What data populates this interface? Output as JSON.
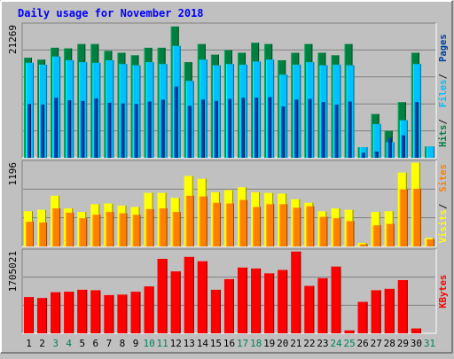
{
  "chart_data": [
    {
      "type": "bar",
      "title": "Daily usage for November 2018",
      "ymax_label": "21269",
      "ylim": [
        0,
        21269
      ],
      "grid": true,
      "categories": [
        "1",
        "2",
        "3",
        "4",
        "5",
        "6",
        "7",
        "8",
        "9",
        "10",
        "11",
        "12",
        "13",
        "14",
        "15",
        "16",
        "17",
        "18",
        "19",
        "20",
        "21",
        "22",
        "23",
        "24",
        "25",
        "26",
        "27",
        "28",
        "29",
        "30",
        "31"
      ],
      "series": [
        {
          "name": "Hits",
          "color": "#008040",
          "values": [
            16000,
            15700,
            17600,
            17500,
            18200,
            18200,
            17100,
            16800,
            16400,
            17600,
            17600,
            21000,
            15300,
            18200,
            16500,
            17200,
            16800,
            18400,
            18200,
            15600,
            16800,
            18200,
            16800,
            16400,
            18200,
            1700,
            7000,
            4300,
            8900,
            16800,
            1800
          ]
        },
        {
          "name": "Files",
          "color": "#00c0ff",
          "values": [
            15200,
            14900,
            16200,
            15600,
            15300,
            15200,
            15600,
            15000,
            14800,
            15300,
            15000,
            17900,
            12300,
            15700,
            14800,
            15000,
            14900,
            15400,
            15700,
            13300,
            14900,
            15300,
            14800,
            14900,
            14800,
            1700,
            5400,
            2500,
            6000,
            15000,
            1800
          ]
        },
        {
          "name": "Pages",
          "color": "#0040a0",
          "values": [
            8600,
            8500,
            9600,
            9200,
            9100,
            9500,
            8800,
            8700,
            8600,
            9000,
            9300,
            11400,
            8300,
            9300,
            9100,
            9400,
            9600,
            9600,
            9700,
            8200,
            9300,
            9400,
            8900,
            8500,
            9000,
            800,
            1000,
            3200,
            3600,
            8900,
            0
          ]
        }
      ]
    },
    {
      "type": "bar",
      "ymax_label": "1196",
      "ylim": [
        0,
        1196
      ],
      "grid": true,
      "categories": [
        "1",
        "2",
        "3",
        "4",
        "5",
        "6",
        "7",
        "8",
        "9",
        "10",
        "11",
        "12",
        "13",
        "14",
        "15",
        "16",
        "17",
        "18",
        "19",
        "20",
        "21",
        "22",
        "23",
        "24",
        "25",
        "26",
        "27",
        "28",
        "29",
        "30",
        "31"
      ],
      "series": [
        {
          "name": "Visits",
          "color": "#ffff00",
          "values": [
            500,
            520,
            720,
            540,
            490,
            600,
            610,
            580,
            560,
            760,
            760,
            690,
            1000,
            960,
            770,
            800,
            840,
            770,
            760,
            750,
            670,
            620,
            500,
            540,
            520,
            50,
            490,
            500,
            1050,
            1190,
            120
          ]
        },
        {
          "name": "Sites",
          "color": "#ff8000",
          "values": [
            350,
            340,
            540,
            480,
            400,
            450,
            490,
            470,
            450,
            530,
            540,
            490,
            720,
            710,
            620,
            610,
            660,
            560,
            600,
            600,
            550,
            570,
            420,
            400,
            360,
            30,
            300,
            320,
            810,
            820,
            100
          ]
        }
      ]
    },
    {
      "type": "bar",
      "ymax_label": "1705021",
      "ylim": [
        0,
        1705021
      ],
      "grid": true,
      "categories": [
        "1",
        "2",
        "3",
        "4",
        "5",
        "6",
        "7",
        "8",
        "9",
        "10",
        "11",
        "12",
        "13",
        "14",
        "15",
        "16",
        "17",
        "18",
        "19",
        "20",
        "21",
        "22",
        "23",
        "24",
        "25",
        "26",
        "27",
        "28",
        "29",
        "30",
        "31"
      ],
      "series": [
        {
          "name": "KBytes",
          "color": "#ff0000",
          "values": [
            750000,
            730000,
            850000,
            860000,
            900000,
            890000,
            790000,
            800000,
            860000,
            970000,
            1540000,
            1280000,
            1580000,
            1490000,
            900000,
            1120000,
            1360000,
            1340000,
            1240000,
            1310000,
            1690000,
            980000,
            1140000,
            1380000,
            60000,
            650000,
            890000,
            920000,
            1100000,
            100000,
            0
          ]
        }
      ]
    }
  ],
  "colors": {
    "background": "#c0c0c0",
    "plot": "#c0c0c0",
    "title": "#0000ff",
    "weekend_label": "#00805c",
    "weekday_label": "#000000",
    "axis_value": "#000000"
  }
}
